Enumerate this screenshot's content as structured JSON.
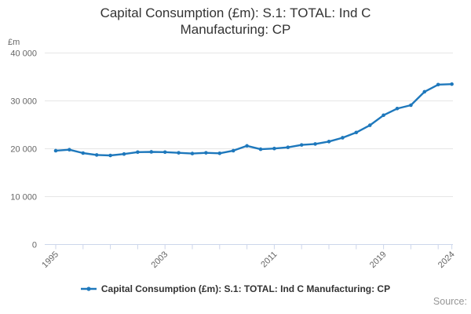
{
  "header": {
    "title": "Capital Consumption (£m): S.1: TOTAL: Ind C Manufacturing: CP"
  },
  "y_axis": {
    "unit_label": "£m",
    "ticks": [
      {
        "value": 0,
        "label": "0"
      },
      {
        "value": 10000,
        "label": "10 000"
      },
      {
        "value": 20000,
        "label": "20 000"
      },
      {
        "value": 30000,
        "label": "30 000"
      },
      {
        "value": 40000,
        "label": "40 000"
      }
    ]
  },
  "x_axis": {
    "tick_years": [
      1995,
      1997,
      1999,
      2001,
      2003,
      2005,
      2007,
      2009,
      2011,
      2013,
      2015,
      2017,
      2019,
      2021,
      2023,
      2024
    ],
    "labeled_ticks": [
      {
        "year": 1995,
        "label": "1995"
      },
      {
        "year": 2003,
        "label": "2003"
      },
      {
        "year": 2011,
        "label": "2011"
      },
      {
        "year": 2019,
        "label": "2019"
      },
      {
        "year": 2024,
        "label": "2024"
      }
    ]
  },
  "legend": {
    "label": "Capital Consumption (£m): S.1: TOTAL: Ind C Manufacturing: CP"
  },
  "footer": {
    "source_label": "Source:"
  },
  "colors": {
    "line": "#1e78bc",
    "grid": "#e6e6e6",
    "axis": "#ccd6eb",
    "tick_text": "#666666",
    "title_text": "#333333",
    "legend_text": "#333333",
    "source_text": "#969696"
  },
  "chart_data": {
    "type": "line",
    "title": "Capital Consumption (£m): S.1: TOTAL: Ind C Manufacturing: CP",
    "xlabel": "",
    "ylabel": "£m",
    "ylim": [
      0,
      40000
    ],
    "grid": "horizontal",
    "legend_position": "bottom",
    "markers": true,
    "x": [
      1995,
      1996,
      1997,
      1998,
      1999,
      2000,
      2001,
      2002,
      2003,
      2004,
      2005,
      2006,
      2007,
      2008,
      2009,
      2010,
      2011,
      2012,
      2013,
      2014,
      2015,
      2016,
      2017,
      2018,
      2019,
      2020,
      2021,
      2022,
      2023,
      2024
    ],
    "series": [
      {
        "name": "Capital Consumption (£m): S.1: TOTAL: Ind C Manufacturing: CP",
        "color": "#1e78bc",
        "values": [
          19600,
          19800,
          19100,
          18700,
          18600,
          18900,
          19300,
          19350,
          19300,
          19150,
          19000,
          19150,
          19050,
          19600,
          20600,
          19900,
          20050,
          20300,
          20800,
          21000,
          21500,
          22300,
          23400,
          24900,
          27000,
          28400,
          29100,
          31900,
          33400,
          33500
        ]
      }
    ]
  }
}
